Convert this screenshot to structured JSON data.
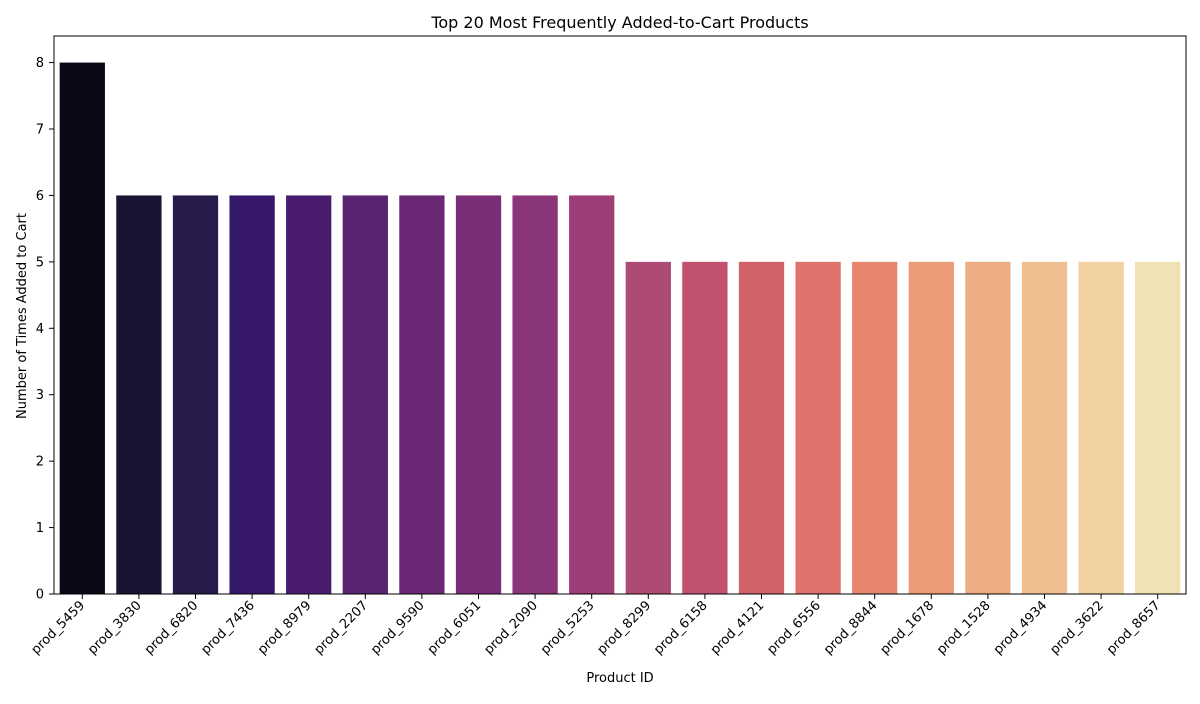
{
  "chart_data": {
    "type": "bar",
    "title": "Top 20 Most Frequently Added-to-Cart Products",
    "xlabel": "Product ID",
    "ylabel": "Number of Times Added to Cart",
    "ylim": [
      0,
      8.4
    ],
    "yticks": [
      0,
      1,
      2,
      3,
      4,
      5,
      6,
      7,
      8
    ],
    "grid": false,
    "legend": "none",
    "categories": [
      "prod_5459",
      "prod_3830",
      "prod_6820",
      "prod_7436",
      "prod_8979",
      "prod_2207",
      "prod_9590",
      "prod_6051",
      "prod_2090",
      "prod_5253",
      "prod_8299",
      "prod_6158",
      "prod_4121",
      "prod_6556",
      "prod_8844",
      "prod_1678",
      "prod_1528",
      "prod_4934",
      "prod_3622",
      "prod_8657"
    ],
    "values": [
      8,
      6,
      6,
      6,
      6,
      6,
      6,
      6,
      6,
      6,
      5,
      5,
      5,
      5,
      5,
      5,
      5,
      5,
      5,
      5
    ],
    "colors": [
      "#0b0918",
      "#191433",
      "#271b4b",
      "#35186a",
      "#4a1c6f",
      "#5b2270",
      "#6b2874",
      "#7b2e78",
      "#8b3679",
      "#9d3e78",
      "#ae4b75",
      "#c0526f",
      "#d16169",
      "#df726a",
      "#e7866f",
      "#eb9c77",
      "#edac82",
      "#efbf92",
      "#f1d0a2",
      "#f1e2b4"
    ]
  }
}
